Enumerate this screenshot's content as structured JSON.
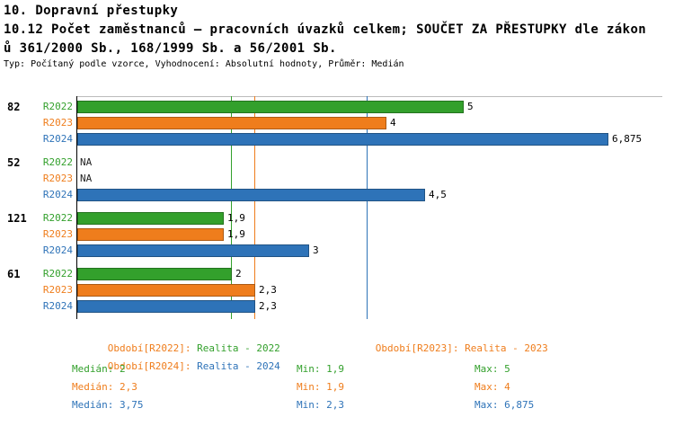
{
  "title": {
    "line1": "10. Dopravní přestupky",
    "line2": "10.12 Počet zaměstnanců – pracovních úvazků celkem; SOUČET ZA PŘESTUPKY dle zákon",
    "line3": "ů 361/2000 Sb., 168/1999 Sb. a 56/2001 Sb.",
    "subtitle": "Typ: Počítaný podle vzorce, Vyhodnocení: Absolutní hodnoty, Průměr: Medián"
  },
  "colors": {
    "r2022": "#33A02C",
    "r2023": "#EF7D1C",
    "r2024": "#2E73B8",
    "legend_label": "#EF7D1C",
    "axis": "#000000",
    "grid": "#BBBBBB",
    "na_text": "#222222"
  },
  "chart_data": {
    "type": "bar",
    "orientation": "horizontal",
    "title": "10.12 Počet zaměstnanců – pracovních úvazků celkem; SOUČET ZA PŘESTUPKY dle zákonů 361/2000 Sb., 168/1999 Sb. a 56/2001 Sb.",
    "categories": [
      "82",
      "52",
      "121",
      "61"
    ],
    "series": [
      {
        "name": "R2022",
        "color_key": "r2022",
        "values": [
          5,
          null,
          1.9,
          2
        ],
        "labels": [
          "5",
          "NA",
          "1,9",
          "2"
        ]
      },
      {
        "name": "R2023",
        "color_key": "r2023",
        "values": [
          4,
          null,
          1.9,
          2.3
        ],
        "labels": [
          "4",
          "NA",
          "1,9",
          "2,3"
        ]
      },
      {
        "name": "R2024",
        "color_key": "r2024",
        "values": [
          6.875,
          4.5,
          3,
          2.3
        ],
        "labels": [
          "6,875",
          "4,5",
          "3",
          "2,3"
        ]
      }
    ],
    "medians": [
      {
        "series": "R2022",
        "value": 2,
        "color_key": "r2022"
      },
      {
        "series": "R2023",
        "value": 2.3,
        "color_key": "r2023"
      },
      {
        "series": "R2024",
        "value": 3.75,
        "color_key": "r2024"
      }
    ],
    "xlim": [
      0,
      7.56
    ],
    "grid": "median-vertical-lines-only",
    "legend_position": "bottom",
    "na_label": "NA"
  },
  "legend": {
    "items": [
      {
        "label": "Období[R2022]:",
        "value": "Realita - 2022",
        "color_key": "r2022"
      },
      {
        "label": "Období[R2023]:",
        "value": "Realita - 2023",
        "color_key": "r2023"
      },
      {
        "label": "Období[R2024]:",
        "value": "Realita - 2024",
        "color_key": "r2024"
      }
    ]
  },
  "stats": {
    "rows": [
      {
        "median": "Medián: 2",
        "min": "Min: 1,9",
        "max": "Max: 5",
        "color_key": "r2022"
      },
      {
        "median": "Medián: 2,3",
        "min": "Min: 1,9",
        "max": "Max: 4",
        "color_key": "r2023"
      },
      {
        "median": "Medián: 3,75",
        "min": "Min: 2,3",
        "max": "Max: 6,875",
        "color_key": "r2024"
      }
    ]
  }
}
